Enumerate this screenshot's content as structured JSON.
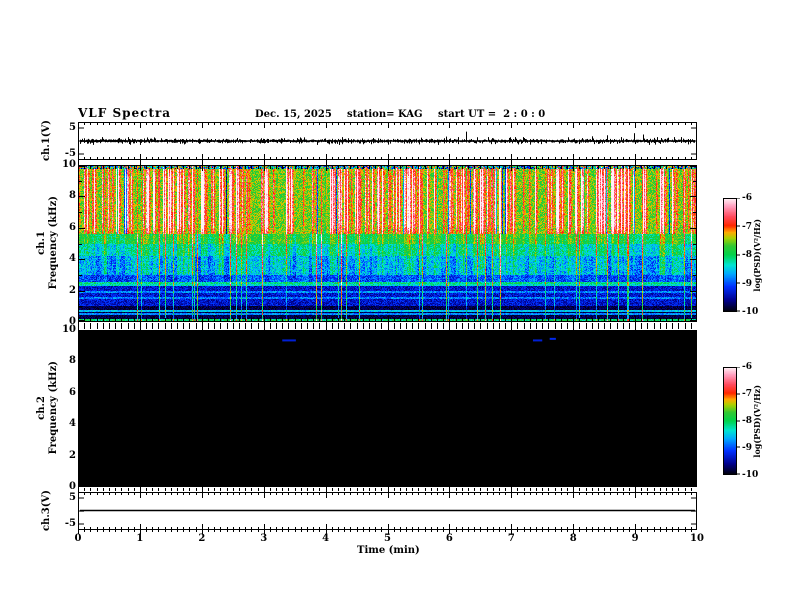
{
  "title": {
    "main": "VLF Spectra",
    "date": "Dec. 15, 2025",
    "station": "station= KAG",
    "start_ut": "start UT =  2 : 0 : 0"
  },
  "time_axis": {
    "label": "Time (min)",
    "min": 0,
    "max": 10,
    "minor_per_major": 10,
    "tick_labels": [
      "0",
      "1",
      "2",
      "3",
      "4",
      "5",
      "6",
      "7",
      "8",
      "9",
      "10"
    ]
  },
  "panels": {
    "ch1_wave": {
      "ylabel": "ch.1(V)",
      "ytick_labels": [
        "5",
        "-5"
      ],
      "yticks_v": [
        5,
        -5
      ]
    },
    "ch1_spec": {
      "ylabel_line1": "ch.1",
      "ylabel_line2": "Frequency (kHz)",
      "ytick_labels": [
        "10",
        "8",
        "6",
        "4",
        "2",
        "0"
      ],
      "yrange": [
        0,
        10
      ]
    },
    "ch2_spec": {
      "ylabel_line1": "ch.2",
      "ylabel_line2": "Frequency (kHz)",
      "ytick_labels": [
        "10",
        "8",
        "6",
        "4",
        "2",
        "0"
      ],
      "yrange": [
        0,
        10
      ]
    },
    "ch3_wave": {
      "ylabel": "ch.3(V)",
      "ytick_labels": [
        "5",
        "-5"
      ],
      "yticks_v": [
        5,
        -5
      ]
    }
  },
  "colorbar": {
    "label": "log(PSD)(V²/Hz)",
    "tick_labels": [
      "-6",
      "-7",
      "-8",
      "-9",
      "-10"
    ],
    "range": [
      -10,
      -6
    ],
    "stops": [
      [
        0,
        "#000006"
      ],
      [
        0.1,
        "#00008c"
      ],
      [
        0.22,
        "#0030ff"
      ],
      [
        0.33,
        "#00a6ff"
      ],
      [
        0.41,
        "#00e4d2"
      ],
      [
        0.5,
        "#00d24b"
      ],
      [
        0.58,
        "#32c832"
      ],
      [
        0.65,
        "#aad200"
      ],
      [
        0.7,
        "#ffaa00"
      ],
      [
        0.76,
        "#ff2800"
      ],
      [
        0.84,
        "#ff4b5f"
      ],
      [
        0.93,
        "#ff9ebe"
      ],
      [
        1,
        "#fff2f6"
      ]
    ]
  },
  "chart_data": [
    {
      "type": "line",
      "name": "ch1 waveform",
      "units": "V",
      "baseline_v": 0,
      "noise_v": 0.45,
      "seed": 77,
      "extra_spikes": {
        "count": 60,
        "v_range": [
          -0.6,
          1.1
        ]
      },
      "spikes": [
        {
          "t": 0.35,
          "v": 0.6
        },
        {
          "t": 1.55,
          "v": 0.8
        },
        {
          "t": 2.4,
          "v": 0.65
        },
        {
          "t": 3.15,
          "v": 0.7
        },
        {
          "t": 4.1,
          "v": -0.7
        },
        {
          "t": 5.0,
          "v": 0.6
        },
        {
          "t": 5.35,
          "v": 0.9
        },
        {
          "t": 5.95,
          "v": 1.7
        },
        {
          "t": 6.27,
          "v": 3.6
        },
        {
          "t": 6.9,
          "v": -0.8
        },
        {
          "t": 7.35,
          "v": 0.8
        },
        {
          "t": 8.3,
          "v": 1.8
        },
        {
          "t": 8.55,
          "v": 2.2
        },
        {
          "t": 8.78,
          "v": 1.5
        },
        {
          "t": 8.98,
          "v": 3.0
        },
        {
          "t": 9.12,
          "v": 2.5
        },
        {
          "t": 9.3,
          "v": 1.2
        }
      ]
    },
    {
      "type": "heatmap",
      "name": "ch1 spectrogram",
      "units": "log10 PSD (V²/Hz)",
      "value_range": [
        -10,
        -6
      ],
      "seed": 1337,
      "bands": [
        {
          "f": [
            9.72,
            10
          ],
          "level": -8.4,
          "noise": 1.5
        },
        {
          "f": [
            5.6,
            9.72
          ],
          "level": -7.55,
          "noise": 0.35
        },
        {
          "f": [
            5.0,
            5.6
          ],
          "level": -7.95,
          "noise": 0.3
        },
        {
          "f": [
            4.2,
            5.0
          ],
          "level": -8.35,
          "noise": 0.35
        },
        {
          "f": [
            3.0,
            4.2
          ],
          "level": -8.7,
          "noise": 0.4
        },
        {
          "f": [
            2.55,
            3.0
          ],
          "level": -9.0,
          "noise": 0.35
        },
        {
          "f": [
            1.05,
            2.55
          ],
          "level": -9.35,
          "noise": 0.3
        },
        {
          "f": [
            0,
            1.05
          ],
          "level": -9.8,
          "noise": 0.18
        }
      ],
      "harmonic_lines": [
        {
          "f": 2.5,
          "boost": 1.2
        },
        {
          "f": 2.35,
          "boost": 1.0
        },
        {
          "f": 1.9,
          "boost": 0.55
        },
        {
          "f": 1.55,
          "boost": 0.5
        },
        {
          "f": 0.72,
          "boost": 1.25
        },
        {
          "f": 0.52,
          "boost": 1.0
        },
        {
          "f": 0.12,
          "boost": 1.75
        }
      ],
      "sferic_streaks": {
        "f_range": [
          5.6,
          9.72
        ],
        "density": 0.3,
        "boost_max": 2.0
      },
      "vertical_streaks": {
        "probability": 0.068,
        "boost": [
          0.6,
          2.1
        ]
      }
    },
    {
      "type": "heatmap",
      "name": "ch2 spectrogram",
      "units": "log10 PSD (V²/Hz)",
      "value_range": [
        -10,
        -6
      ],
      "level": -10,
      "marks": [
        {
          "t": 3.3,
          "f": 9.4,
          "w": 0.22,
          "level": -9.3
        },
        {
          "t": 7.35,
          "f": 9.4,
          "w": 0.15,
          "level": -9.3
        },
        {
          "t": 7.62,
          "f": 9.5,
          "w": 0.1,
          "level": -9.2
        }
      ]
    },
    {
      "type": "line",
      "name": "ch3 waveform",
      "units": "V",
      "flat_v": 0
    }
  ]
}
